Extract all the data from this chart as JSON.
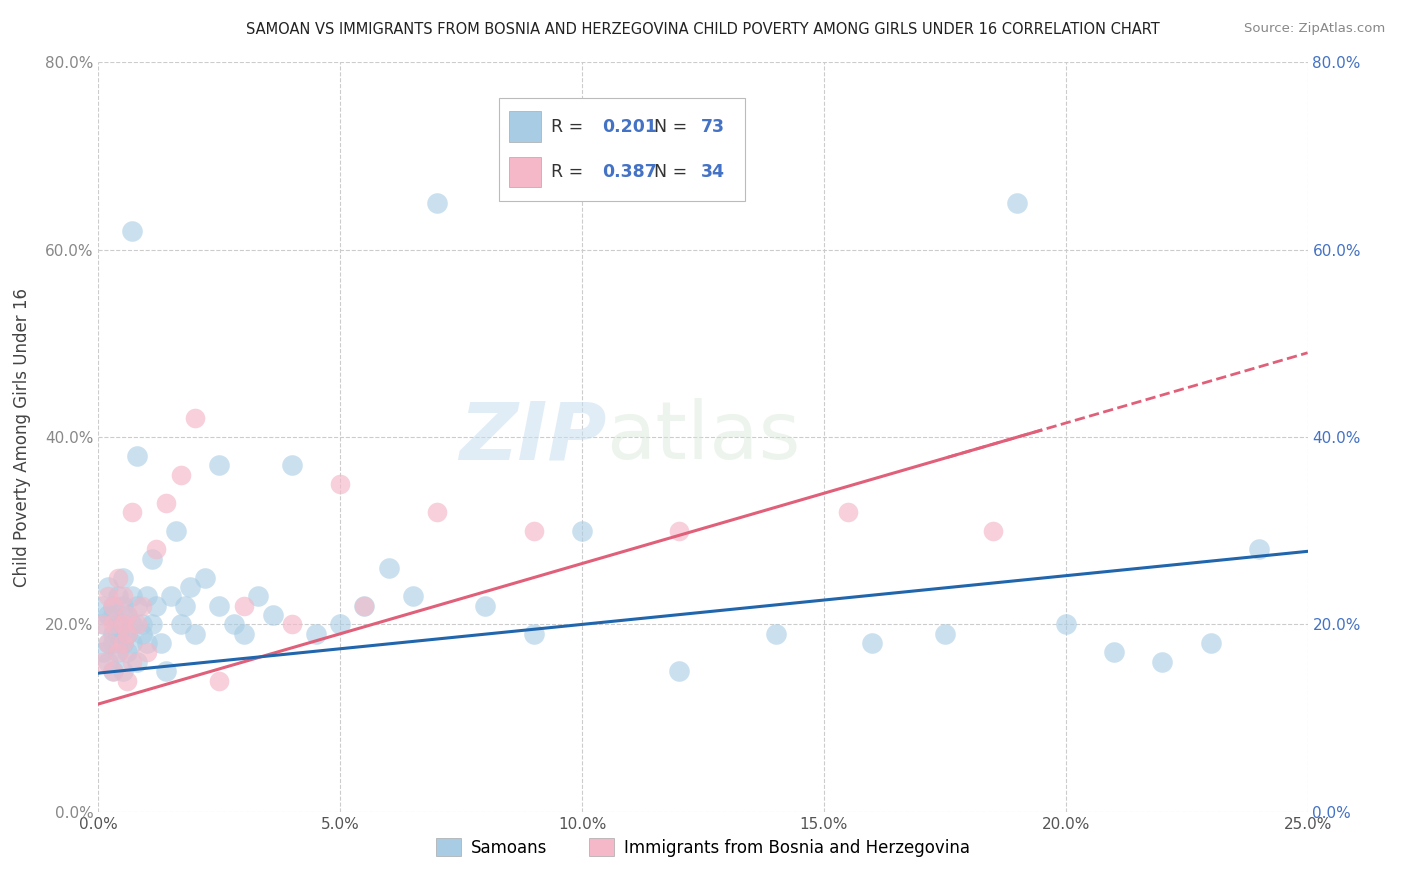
{
  "title": "SAMOAN VS IMMIGRANTS FROM BOSNIA AND HERZEGOVINA CHILD POVERTY AMONG GIRLS UNDER 16 CORRELATION CHART",
  "source": "Source: ZipAtlas.com",
  "ylabel": "Child Poverty Among Girls Under 16",
  "xlim": [
    0,
    0.25
  ],
  "ylim": [
    0,
    0.8
  ],
  "xticks": [
    0.0,
    0.05,
    0.1,
    0.15,
    0.2,
    0.25
  ],
  "yticks": [
    0.0,
    0.2,
    0.4,
    0.6,
    0.8
  ],
  "legend_bottom": [
    "Samoans",
    "Immigrants from Bosnia and Herzegovina"
  ],
  "blue_color": "#a8cce4",
  "pink_color": "#f4b8c8",
  "blue_line_color": "#2166ac",
  "pink_line_color": "#e0607a",
  "watermark_zip": "ZIP",
  "watermark_atlas": "atlas",
  "blue_intercept": 0.148,
  "blue_slope": 0.52,
  "pink_intercept": 0.115,
  "pink_slope": 1.5,
  "blue_x": [
    0.001,
    0.001,
    0.001,
    0.002,
    0.002,
    0.002,
    0.002,
    0.003,
    0.003,
    0.003,
    0.003,
    0.003,
    0.004,
    0.004,
    0.004,
    0.004,
    0.005,
    0.005,
    0.005,
    0.005,
    0.005,
    0.006,
    0.006,
    0.006,
    0.007,
    0.007,
    0.007,
    0.008,
    0.008,
    0.009,
    0.009,
    0.01,
    0.01,
    0.011,
    0.011,
    0.012,
    0.013,
    0.014,
    0.015,
    0.016,
    0.017,
    0.018,
    0.019,
    0.02,
    0.022,
    0.025,
    0.028,
    0.03,
    0.033,
    0.036,
    0.04,
    0.045,
    0.05,
    0.055,
    0.06,
    0.065,
    0.07,
    0.08,
    0.09,
    0.1,
    0.12,
    0.14,
    0.16,
    0.175,
    0.19,
    0.2,
    0.21,
    0.22,
    0.23,
    0.24,
    0.007,
    0.008,
    0.025
  ],
  "blue_y": [
    0.2,
    0.17,
    0.22,
    0.18,
    0.21,
    0.24,
    0.16,
    0.19,
    0.22,
    0.15,
    0.18,
    0.21,
    0.2,
    0.17,
    0.23,
    0.19,
    0.2,
    0.18,
    0.22,
    0.15,
    0.25,
    0.19,
    0.21,
    0.17,
    0.2,
    0.23,
    0.18,
    0.22,
    0.16,
    0.2,
    0.19,
    0.23,
    0.18,
    0.27,
    0.2,
    0.22,
    0.18,
    0.15,
    0.23,
    0.3,
    0.2,
    0.22,
    0.24,
    0.19,
    0.25,
    0.22,
    0.2,
    0.19,
    0.23,
    0.21,
    0.37,
    0.19,
    0.2,
    0.22,
    0.26,
    0.23,
    0.65,
    0.22,
    0.19,
    0.3,
    0.15,
    0.19,
    0.18,
    0.19,
    0.65,
    0.2,
    0.17,
    0.16,
    0.18,
    0.28,
    0.62,
    0.38,
    0.37
  ],
  "pink_x": [
    0.001,
    0.001,
    0.002,
    0.002,
    0.003,
    0.003,
    0.003,
    0.004,
    0.004,
    0.005,
    0.005,
    0.005,
    0.006,
    0.006,
    0.006,
    0.007,
    0.007,
    0.008,
    0.009,
    0.01,
    0.012,
    0.014,
    0.017,
    0.02,
    0.025,
    0.03,
    0.04,
    0.05,
    0.055,
    0.07,
    0.09,
    0.12,
    0.155,
    0.185
  ],
  "pink_y": [
    0.2,
    0.16,
    0.23,
    0.18,
    0.2,
    0.15,
    0.22,
    0.17,
    0.25,
    0.2,
    0.18,
    0.23,
    0.21,
    0.14,
    0.19,
    0.32,
    0.16,
    0.2,
    0.22,
    0.17,
    0.28,
    0.33,
    0.36,
    0.42,
    0.14,
    0.22,
    0.2,
    0.35,
    0.22,
    0.32,
    0.3,
    0.3,
    0.32,
    0.3
  ]
}
